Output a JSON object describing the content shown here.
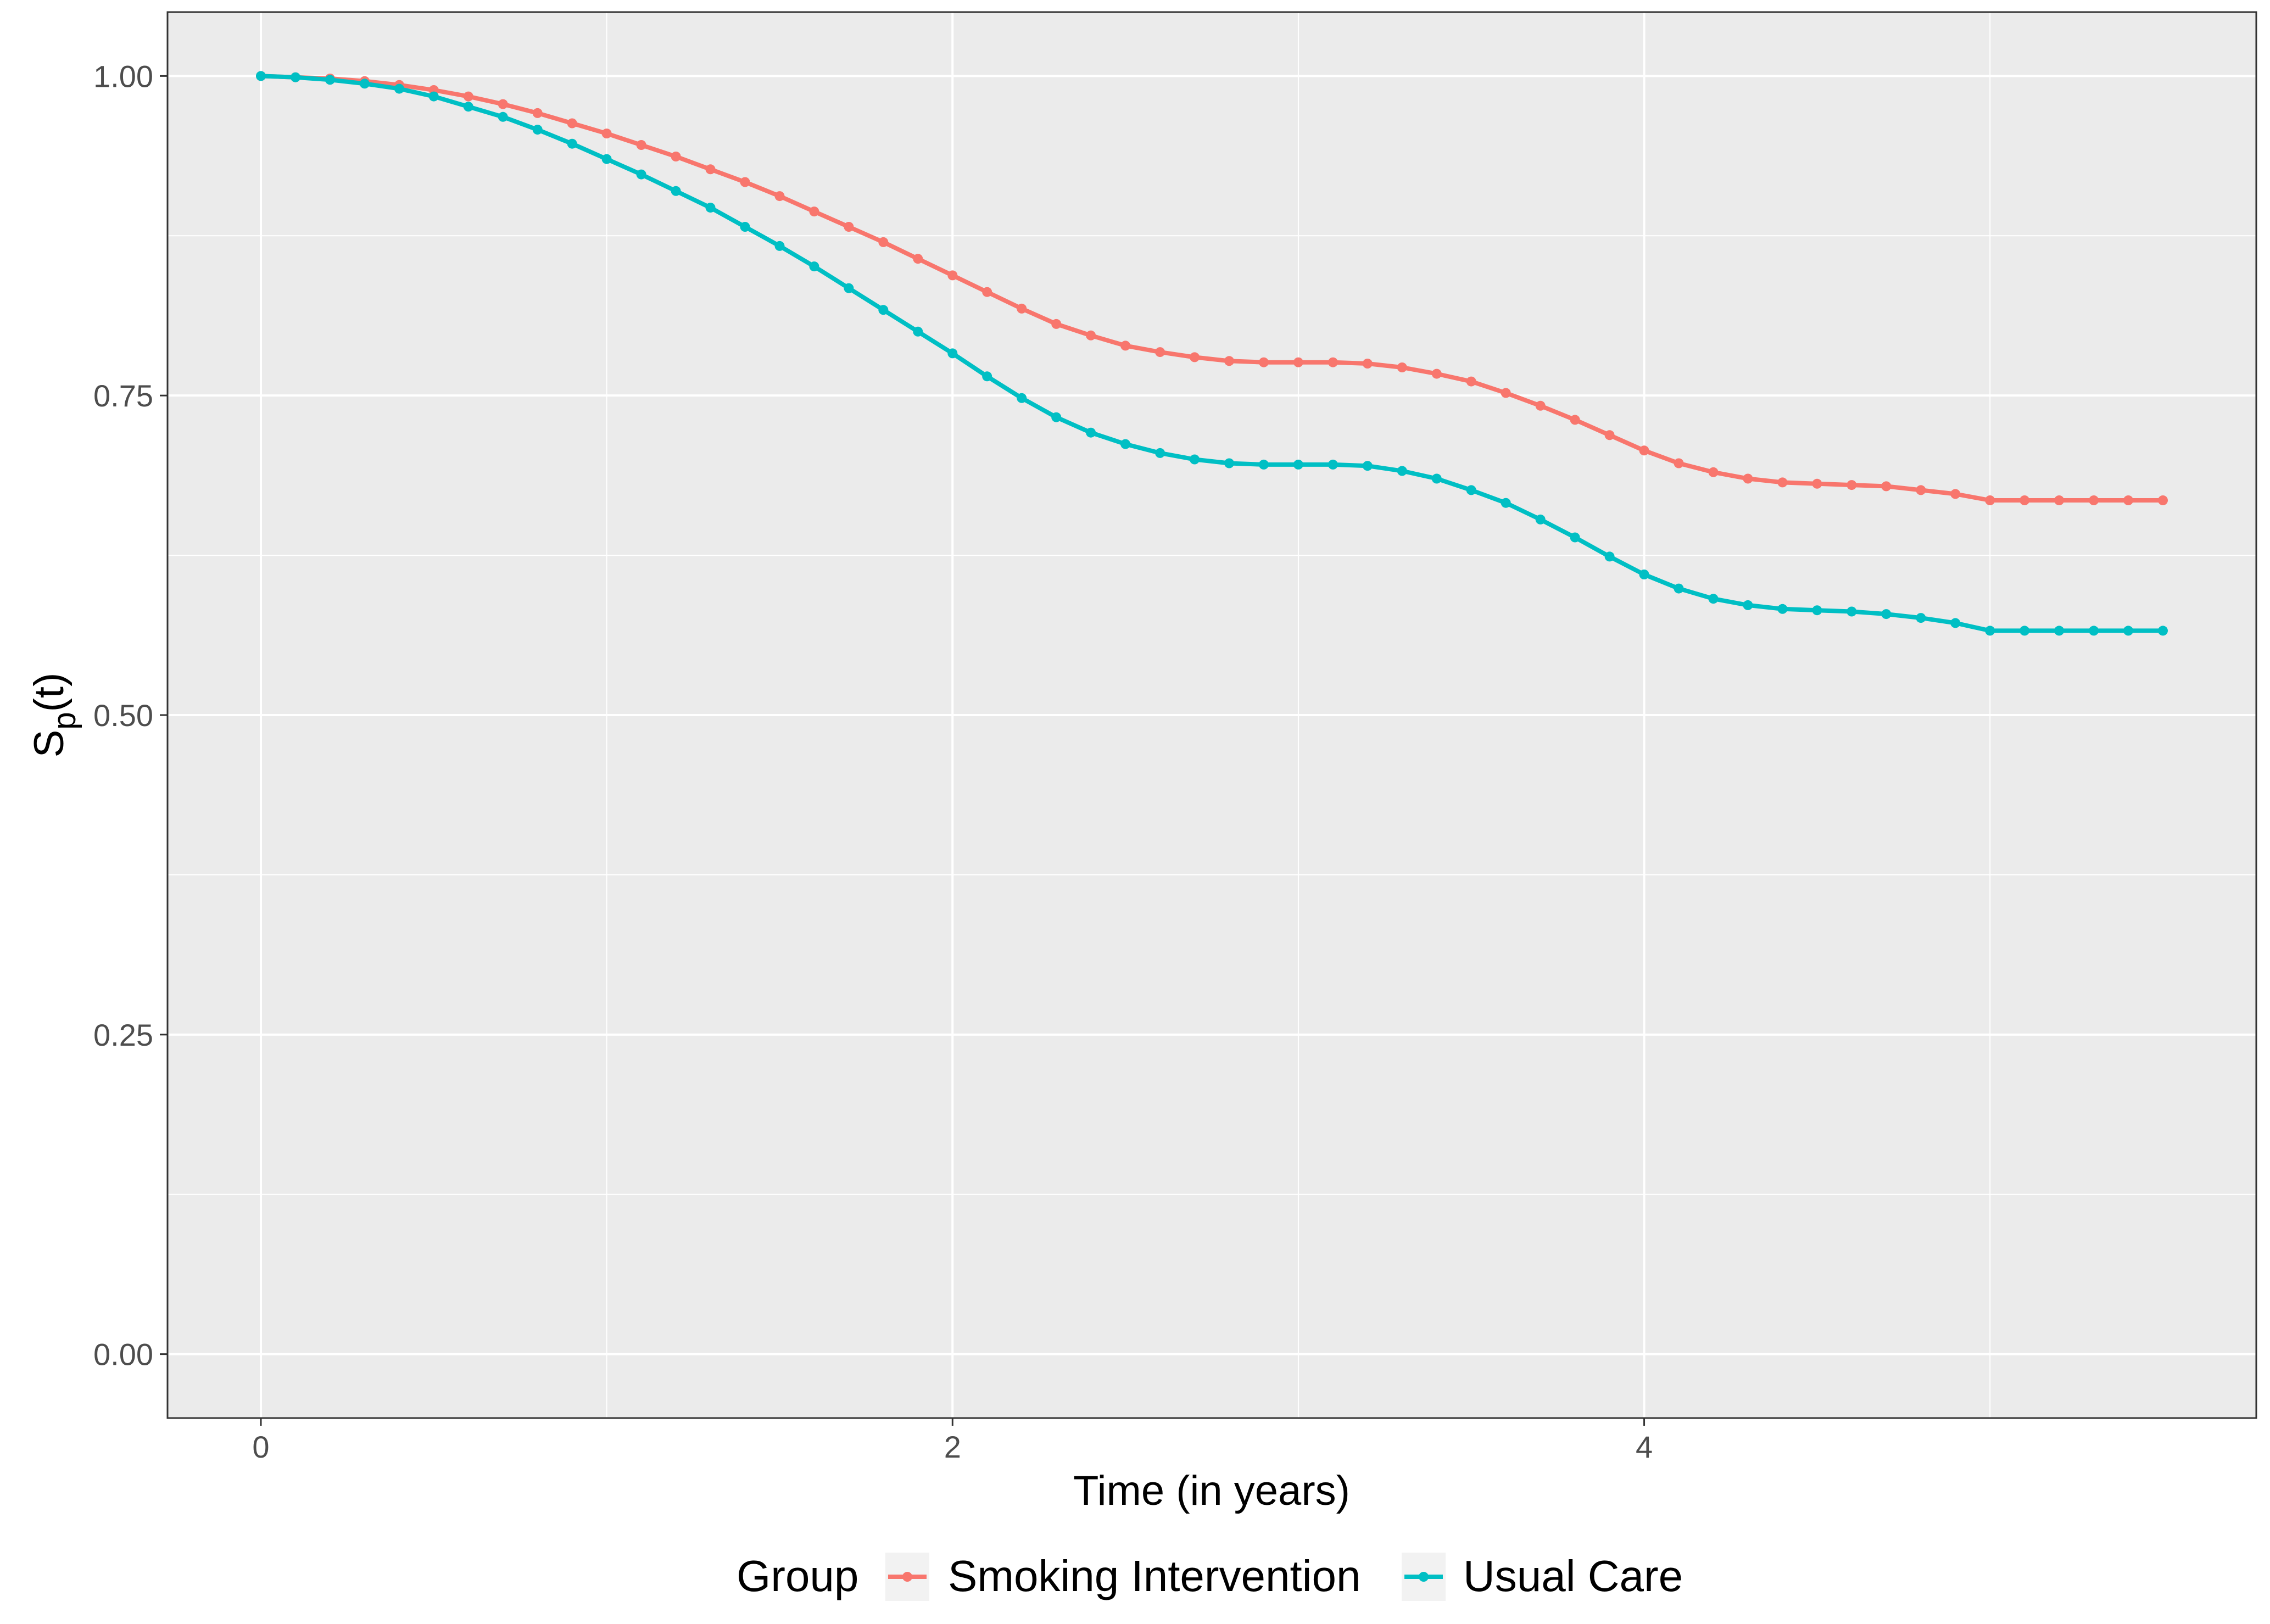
{
  "chart_data": {
    "type": "line",
    "title": "",
    "xlabel": "Time (in years)",
    "ylabel": {
      "main": "S",
      "subscript": "p",
      "suffix": "(t)"
    },
    "xlim": [
      -0.27,
      5.77
    ],
    "ylim": [
      -0.05,
      1.05
    ],
    "x_ticks": [
      0,
      2,
      4
    ],
    "x_tick_labels": [
      "0",
      "2",
      "4"
    ],
    "y_ticks": [
      0,
      0.25,
      0.5,
      0.75,
      1
    ],
    "y_tick_labels": [
      "0.00",
      "0.25",
      "0.50",
      "0.75",
      "1.00"
    ],
    "x_minor_ticks": [
      1,
      3,
      5
    ],
    "y_minor_ticks": [
      0.125,
      0.375,
      0.625,
      0.875
    ],
    "grid": true,
    "legend": {
      "title": "Group",
      "position": "bottom"
    },
    "series": [
      {
        "name": "Smoking Intervention",
        "color": "#F8766D",
        "x": [
          0,
          0.1,
          0.2,
          0.3,
          0.4,
          0.5,
          0.6,
          0.7,
          0.8,
          0.9,
          1.0,
          1.1,
          1.2,
          1.3,
          1.4,
          1.5,
          1.6,
          1.7,
          1.8,
          1.9,
          2.0,
          2.1,
          2.2,
          2.3,
          2.4,
          2.5,
          2.6,
          2.7,
          2.8,
          2.9,
          3.0,
          3.1,
          3.2,
          3.3,
          3.4,
          3.5,
          3.6,
          3.7,
          3.8,
          3.9,
          4.0,
          4.1,
          4.2,
          4.3,
          4.4,
          4.5,
          4.6,
          4.7,
          4.8,
          4.9,
          5.0,
          5.1,
          5.2,
          5.3,
          5.4,
          5.5
        ],
        "y": [
          1.0,
          0.999,
          0.998,
          0.996,
          0.993,
          0.989,
          0.984,
          0.978,
          0.971,
          0.963,
          0.955,
          0.946,
          0.937,
          0.927,
          0.917,
          0.906,
          0.894,
          0.882,
          0.87,
          0.857,
          0.844,
          0.831,
          0.818,
          0.806,
          0.797,
          0.789,
          0.784,
          0.78,
          0.777,
          0.776,
          0.776,
          0.776,
          0.775,
          0.772,
          0.767,
          0.761,
          0.752,
          0.742,
          0.731,
          0.719,
          0.707,
          0.697,
          0.69,
          0.685,
          0.682,
          0.681,
          0.68,
          0.679,
          0.676,
          0.673,
          0.668,
          0.668,
          0.668,
          0.668,
          0.668,
          0.668
        ]
      },
      {
        "name": "Usual Care",
        "color": "#00BFC4",
        "x": [
          0,
          0.1,
          0.2,
          0.3,
          0.4,
          0.5,
          0.6,
          0.7,
          0.8,
          0.9,
          1.0,
          1.1,
          1.2,
          1.3,
          1.4,
          1.5,
          1.6,
          1.7,
          1.8,
          1.9,
          2.0,
          2.1,
          2.2,
          2.3,
          2.4,
          2.5,
          2.6,
          2.7,
          2.8,
          2.9,
          3.0,
          3.1,
          3.2,
          3.3,
          3.4,
          3.5,
          3.6,
          3.7,
          3.8,
          3.9,
          4.0,
          4.1,
          4.2,
          4.3,
          4.4,
          4.5,
          4.6,
          4.7,
          4.8,
          4.9,
          5.0,
          5.1,
          5.2,
          5.3,
          5.4,
          5.5
        ],
        "y": [
          1.0,
          0.999,
          0.997,
          0.994,
          0.99,
          0.984,
          0.976,
          0.968,
          0.958,
          0.947,
          0.935,
          0.923,
          0.91,
          0.897,
          0.882,
          0.867,
          0.851,
          0.834,
          0.817,
          0.8,
          0.783,
          0.765,
          0.748,
          0.733,
          0.721,
          0.712,
          0.705,
          0.7,
          0.697,
          0.696,
          0.696,
          0.696,
          0.695,
          0.691,
          0.685,
          0.676,
          0.666,
          0.653,
          0.639,
          0.624,
          0.61,
          0.599,
          0.591,
          0.586,
          0.583,
          0.582,
          0.581,
          0.579,
          0.576,
          0.572,
          0.566,
          0.566,
          0.566,
          0.566,
          0.566,
          0.566
        ]
      }
    ]
  }
}
